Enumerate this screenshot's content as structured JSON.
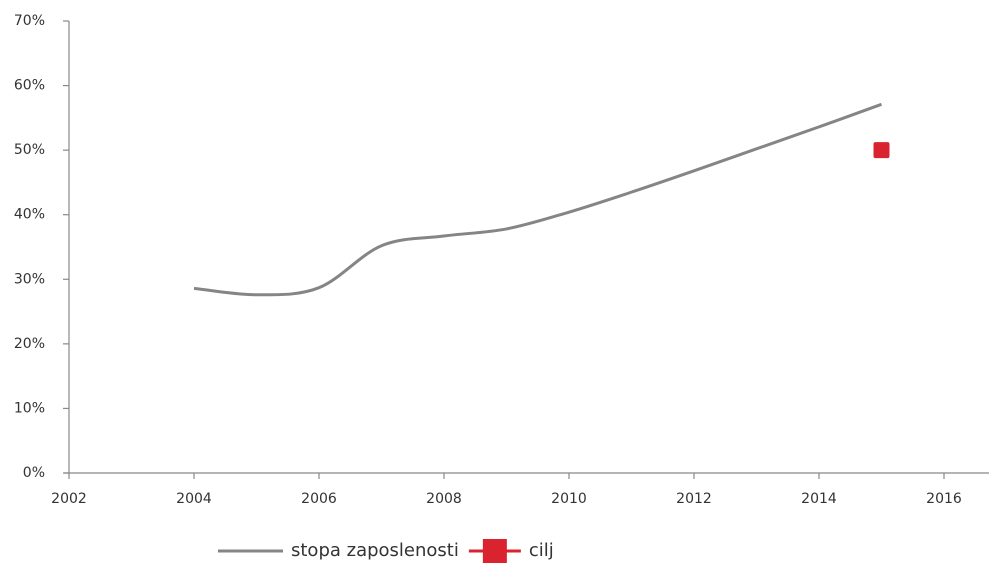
{
  "chart_data": {
    "type": "line",
    "series": [
      {
        "name": "stopa zaposlenosti",
        "color": "#858585",
        "smooth": true,
        "x": [
          2004,
          2005,
          2006,
          2007,
          2008,
          2009,
          2010,
          2011,
          2012,
          2013,
          2014,
          2015
        ],
        "values": [
          28.6,
          27.6,
          28.7,
          35.2,
          36.7,
          37.8,
          40.4,
          43.5,
          46.8,
          50.2,
          53.6,
          57.1
        ]
      },
      {
        "name": "cilj",
        "color": "#d9232e",
        "marker": "square",
        "x": [
          2015
        ],
        "values": [
          50
        ]
      }
    ],
    "xlim": [
      2002,
      2017
    ],
    "xticks": [
      2002,
      2004,
      2006,
      2008,
      2010,
      2012,
      2014,
      2016
    ],
    "ylim": [
      0,
      70
    ],
    "yticks": [
      {
        "value": 0,
        "label": "0%"
      },
      {
        "value": 10,
        "label": "10%"
      },
      {
        "value": 20,
        "label": "20%"
      },
      {
        "value": 30,
        "label": "30%"
      },
      {
        "value": 40,
        "label": "40%"
      },
      {
        "value": 50,
        "label": "50%"
      },
      {
        "value": 60,
        "label": "60%"
      },
      {
        "value": 70,
        "label": "70%"
      }
    ],
    "legend": "bottom"
  }
}
